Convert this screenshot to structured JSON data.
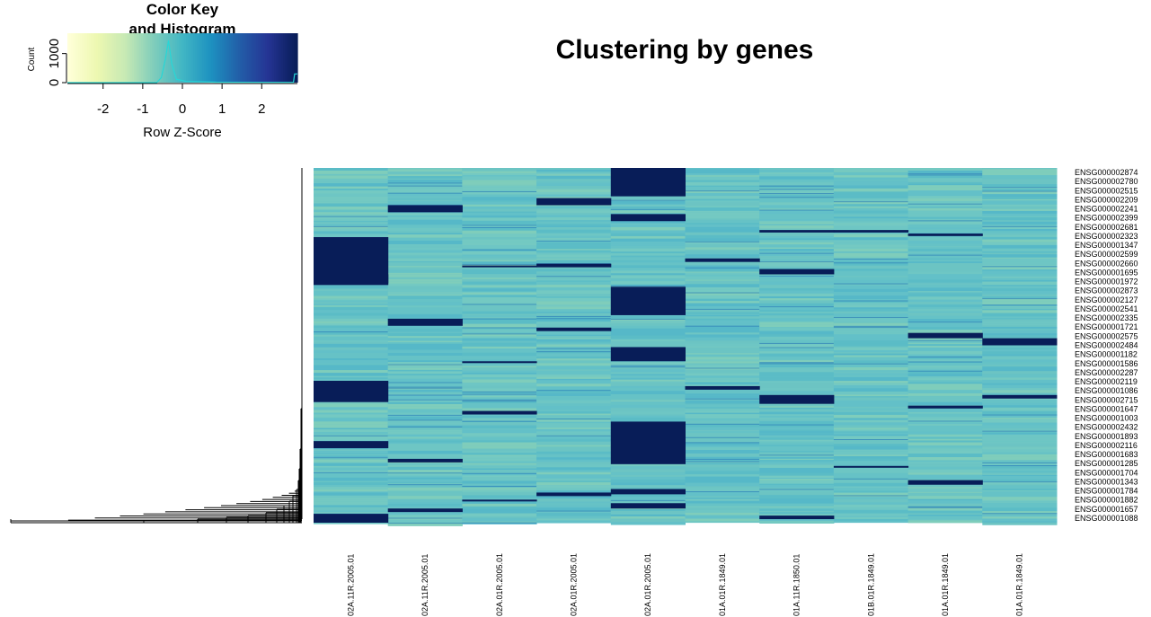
{
  "chart_data": {
    "type": "heatmap",
    "title": "Clustering by genes",
    "color_key": {
      "title_line1": "Color Key",
      "title_line2": "and Histogram",
      "xlabel": "Row Z-Score",
      "ylabel": "Count",
      "x_ticks": [
        "-2",
        "-1",
        "0",
        "1",
        "2"
      ],
      "x_range": [
        -2.9,
        2.9
      ],
      "y_ticks": [
        "0",
        "1000"
      ],
      "y_range": [
        0,
        1700
      ],
      "histogram_peaks": [
        {
          "z": -0.35,
          "count": 1450
        },
        {
          "z": 2.85,
          "count": 300
        }
      ],
      "colors": [
        "#ffffd9",
        "#edf8b1",
        "#c7e9b4",
        "#7fcdbb",
        "#41b6c4",
        "#1d91c0",
        "#225ea8",
        "#253494",
        "#081d58"
      ]
    },
    "columns": [
      "02A.11R.2005.01",
      "02A.11R.2005.01",
      "02A.01R.2005.01",
      "02A.01R.2005.01",
      "02A.01R.2005.01",
      "01A.01R.1849.01",
      "01A.11R.1850.01",
      "01B.01R.1849.01",
      "01A.01R.1849.01",
      "01A.01R.1849.01"
    ],
    "row_labels": [
      "ENSG000002874",
      "ENSG000002780",
      "ENSG000002515",
      "ENSG000002209",
      "ENSG000002241",
      "ENSG000002399",
      "ENSG000002681",
      "ENSG000002323",
      "ENSG000001347",
      "ENSG000002599",
      "ENSG000002660",
      "ENSG000001695",
      "ENSG000001972",
      "ENSG000002873",
      "ENSG000002127",
      "ENSG000002541",
      "ENSG000002335",
      "ENSG000001721",
      "ENSG000002575",
      "ENSG000002484",
      "ENSG000001182",
      "ENSG000001586",
      "ENSG000002287",
      "ENSG000002119",
      "ENSG000001086",
      "ENSG000002715",
      "ENSG000001647",
      "ENSG000001003",
      "ENSG000002432",
      "ENSG000001893",
      "ENSG000002116",
      "ENSG000001683",
      "ENSG000001285",
      "ENSG000001704",
      "ENSG000001343",
      "ENSG000001784",
      "ENSG000001882",
      "ENSG000001657",
      "ENSG000001088"
    ],
    "baseline_color": "#66c2c6",
    "high_color": "#081d58",
    "high_blocks": [
      {
        "col": 0,
        "from": 0.195,
        "to": 0.325
      },
      {
        "col": 0,
        "from": 0.3,
        "to": 0.33
      },
      {
        "col": 0,
        "from": 0.6,
        "to": 0.66
      },
      {
        "col": 0,
        "from": 0.77,
        "to": 0.79
      },
      {
        "col": 0,
        "from": 0.975,
        "to": 1.0
      },
      {
        "col": 1,
        "from": 0.105,
        "to": 0.125
      },
      {
        "col": 1,
        "from": 0.425,
        "to": 0.445
      },
      {
        "col": 1,
        "from": 0.82,
        "to": 0.83
      },
      {
        "col": 1,
        "from": 0.96,
        "to": 0.97
      },
      {
        "col": 2,
        "from": 0.275,
        "to": 0.28
      },
      {
        "col": 2,
        "from": 0.545,
        "to": 0.55
      },
      {
        "col": 2,
        "from": 0.685,
        "to": 0.695
      },
      {
        "col": 2,
        "from": 0.935,
        "to": 0.94
      },
      {
        "col": 3,
        "from": 0.085,
        "to": 0.105
      },
      {
        "col": 3,
        "from": 0.27,
        "to": 0.28
      },
      {
        "col": 3,
        "from": 0.45,
        "to": 0.46
      },
      {
        "col": 3,
        "from": 0.915,
        "to": 0.925
      },
      {
        "col": 4,
        "from": 0.0,
        "to": 0.08
      },
      {
        "col": 4,
        "from": 0.13,
        "to": 0.15
      },
      {
        "col": 4,
        "from": 0.335,
        "to": 0.415
      },
      {
        "col": 4,
        "from": 0.505,
        "to": 0.545
      },
      {
        "col": 4,
        "from": 0.715,
        "to": 0.835
      },
      {
        "col": 4,
        "from": 0.905,
        "to": 0.92
      },
      {
        "col": 4,
        "from": 0.945,
        "to": 0.96
      },
      {
        "col": 5,
        "from": 0.255,
        "to": 0.265
      },
      {
        "col": 5,
        "from": 0.615,
        "to": 0.625
      },
      {
        "col": 6,
        "from": 0.175,
        "to": 0.182
      },
      {
        "col": 6,
        "from": 0.285,
        "to": 0.3
      },
      {
        "col": 6,
        "from": 0.64,
        "to": 0.665
      },
      {
        "col": 6,
        "from": 0.98,
        "to": 0.99
      },
      {
        "col": 7,
        "from": 0.175,
        "to": 0.182
      },
      {
        "col": 7,
        "from": 0.84,
        "to": 0.845
      },
      {
        "col": 8,
        "from": 0.185,
        "to": 0.192
      },
      {
        "col": 8,
        "from": 0.465,
        "to": 0.48
      },
      {
        "col": 8,
        "from": 0.67,
        "to": 0.678
      },
      {
        "col": 8,
        "from": 0.88,
        "to": 0.893
      },
      {
        "col": 9,
        "from": 0.48,
        "to": 0.5
      },
      {
        "col": 9,
        "from": 0.64,
        "to": 0.65
      }
    ]
  }
}
